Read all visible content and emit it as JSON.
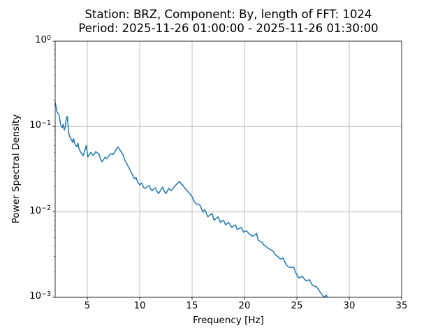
{
  "chart_data": {
    "type": "line",
    "title_line1": "Station: BRZ, Component: By, length of FFT: 1024",
    "title_line2": "Period: 2025-11-26 01:00:00 - 2025-11-26 01:30:00",
    "xlabel": "Frequency [Hz]",
    "ylabel": "Power Spectral Density",
    "xscale": "linear",
    "yscale": "log",
    "xlim": [
      1.93,
      35
    ],
    "ylim": [
      0.001,
      1.0
    ],
    "grid": true,
    "legend": "none",
    "x_ticks": [
      5,
      10,
      15,
      20,
      25,
      30,
      35
    ],
    "y_tick_exponents": [
      "0",
      "−1",
      "−2",
      "−3"
    ],
    "colors": {
      "line": "#1f77b4",
      "grid": "#b0b0b0",
      "spine": "#000000",
      "background": "#ffffff",
      "text": "#000000"
    },
    "series": [
      {
        "name": "psd",
        "x": [
          1.95,
          2.0,
          2.1,
          2.2,
          2.3,
          2.4,
          2.5,
          2.6,
          2.7,
          2.8,
          2.9,
          3.0,
          3.1,
          3.2,
          3.3,
          3.4,
          3.5,
          3.6,
          3.7,
          3.8,
          3.9,
          4.0,
          4.1,
          4.2,
          4.3,
          4.45,
          4.6,
          4.75,
          4.9,
          5.05,
          5.2,
          5.35,
          5.5,
          5.65,
          5.8,
          5.95,
          6.1,
          6.25,
          6.4,
          6.55,
          6.7,
          6.85,
          7.0,
          7.15,
          7.3,
          7.45,
          7.6,
          7.75,
          7.9,
          8.05,
          8.2,
          8.4,
          8.6,
          8.8,
          9.0,
          9.2,
          9.35,
          9.5,
          9.65,
          9.8,
          10.0,
          10.2,
          10.35,
          10.5,
          10.7,
          10.9,
          11.05,
          11.2,
          11.35,
          11.5,
          11.65,
          11.8,
          12.0,
          12.2,
          12.35,
          12.5,
          12.65,
          12.8,
          13.0,
          13.2,
          13.45,
          13.65,
          13.8,
          13.95,
          14.1,
          14.3,
          14.5,
          14.65,
          14.8,
          15.0,
          15.2,
          15.4,
          15.6,
          15.8,
          16.0,
          16.2,
          16.35,
          16.5,
          16.7,
          16.9,
          17.1,
          17.3,
          17.5,
          17.7,
          17.85,
          18.0,
          18.2,
          18.35,
          18.5,
          18.65,
          18.8,
          19.0,
          19.15,
          19.3,
          19.5,
          19.7,
          19.9,
          20.05,
          20.2,
          20.35,
          20.5,
          20.7,
          20.85,
          21.0,
          21.15,
          21.3,
          21.5,
          21.7,
          21.85,
          22.0,
          22.2,
          22.35,
          22.5,
          22.7,
          22.85,
          23.0,
          23.2,
          23.35,
          23.5,
          23.7,
          23.85,
          24.0,
          24.15,
          24.35,
          24.5,
          24.7,
          24.85,
          25.0,
          25.2,
          25.35,
          25.5,
          25.7,
          25.9,
          26.05,
          26.2,
          26.35,
          26.5,
          26.7,
          26.9,
          27.05,
          27.2,
          27.35,
          27.5,
          27.6,
          27.7,
          27.8,
          27.9,
          28.0,
          28.1
        ],
        "y": [
          0.19,
          0.175,
          0.15,
          0.142,
          0.138,
          0.115,
          0.102,
          0.097,
          0.106,
          0.091,
          0.099,
          0.128,
          0.131,
          0.088,
          0.077,
          0.073,
          0.07,
          0.065,
          0.072,
          0.063,
          0.06,
          0.058,
          0.064,
          0.055,
          0.052,
          0.048,
          0.0455,
          0.052,
          0.06,
          0.044,
          0.047,
          0.05,
          0.046,
          0.047,
          0.051,
          0.049,
          0.048,
          0.042,
          0.0386,
          0.041,
          0.044,
          0.042,
          0.0445,
          0.047,
          0.048,
          0.047,
          0.05,
          0.054,
          0.0575,
          0.055,
          0.051,
          0.047,
          0.04,
          0.036,
          0.0325,
          0.029,
          0.0265,
          0.0245,
          0.0252,
          0.0225,
          0.0207,
          0.0218,
          0.0196,
          0.0188,
          0.0198,
          0.0204,
          0.0185,
          0.0177,
          0.0188,
          0.0192,
          0.0174,
          0.0164,
          0.018,
          0.0196,
          0.0174,
          0.0164,
          0.0178,
          0.0188,
          0.0177,
          0.019,
          0.0207,
          0.0218,
          0.0228,
          0.0213,
          0.0207,
          0.019,
          0.018,
          0.017,
          0.0164,
          0.015,
          0.0133,
          0.0124,
          0.0123,
          0.0118,
          0.01,
          0.0106,
          0.0098,
          0.00875,
          0.0092,
          0.0096,
          0.008,
          0.0084,
          0.00875,
          0.00755,
          0.0078,
          0.008,
          0.00705,
          0.0073,
          0.00755,
          0.007,
          0.0066,
          0.0069,
          0.00705,
          0.00625,
          0.0064,
          0.0066,
          0.0058,
          0.0059,
          0.006,
          0.0057,
          0.0055,
          0.0052,
          0.0053,
          0.0054,
          0.0056,
          0.0047,
          0.0045,
          0.0044,
          0.0041,
          0.004,
          0.0038,
          0.0037,
          0.0036,
          0.0035,
          0.0033,
          0.0031,
          0.003,
          0.00285,
          0.0028,
          0.0029,
          0.0026,
          0.0024,
          0.0023,
          0.00222,
          0.00224,
          0.00226,
          0.002,
          0.00183,
          0.00168,
          0.00172,
          0.00177,
          0.00165,
          0.00155,
          0.00158,
          0.00161,
          0.00148,
          0.00138,
          0.00135,
          0.00132,
          0.00124,
          0.00116,
          0.0011,
          0.00104,
          0.001,
          0.00103,
          0.00106,
          0.00101,
          0.00097,
          0.00094
        ]
      }
    ]
  }
}
